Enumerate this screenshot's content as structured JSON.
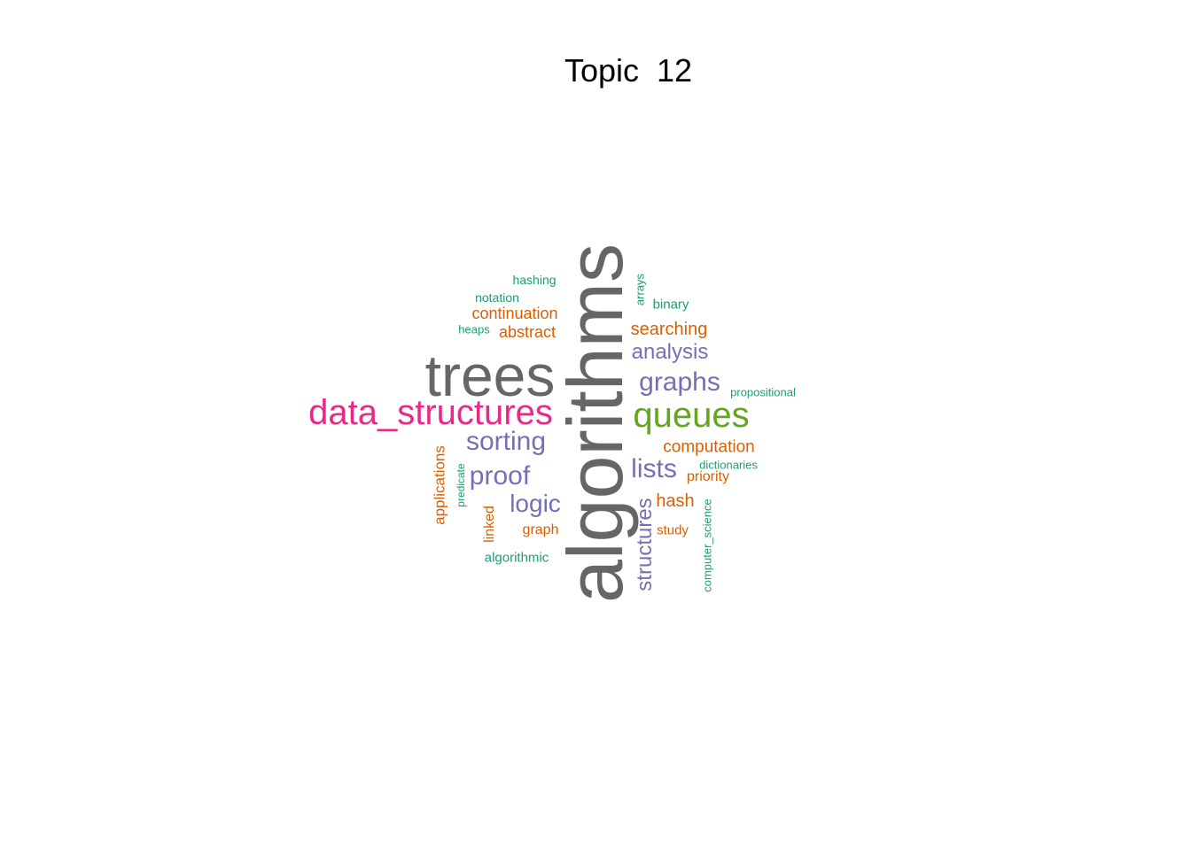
{
  "title": "Topic  12",
  "colors": {
    "gray": "#666666",
    "pink": "#e7298a",
    "green": "#66a61e",
    "purple": "#7570b3",
    "orange": "#d95f02",
    "teal": "#1b9e77"
  },
  "words": [
    {
      "text": "algorithms",
      "color": "#666666"
    },
    {
      "text": "trees",
      "color": "#666666"
    },
    {
      "text": "data_structures",
      "color": "#e7298a"
    },
    {
      "text": "queues",
      "color": "#66a61e"
    },
    {
      "text": "sorting",
      "color": "#7570b3"
    },
    {
      "text": "graphs",
      "color": "#7570b3"
    },
    {
      "text": "proof",
      "color": "#7570b3"
    },
    {
      "text": "lists",
      "color": "#7570b3"
    },
    {
      "text": "logic",
      "color": "#7570b3"
    },
    {
      "text": "structures",
      "color": "#7570b3"
    },
    {
      "text": "analysis",
      "color": "#7570b3"
    },
    {
      "text": "searching",
      "color": "#d95f02"
    },
    {
      "text": "computation",
      "color": "#d95f02"
    },
    {
      "text": "continuation",
      "color": "#d95f02"
    },
    {
      "text": "abstract",
      "color": "#d95f02"
    },
    {
      "text": "hash",
      "color": "#d95f02"
    },
    {
      "text": "applications",
      "color": "#d95f02"
    },
    {
      "text": "priority",
      "color": "#d95f02"
    },
    {
      "text": "linked",
      "color": "#d95f02"
    },
    {
      "text": "graph",
      "color": "#d95f02"
    },
    {
      "text": "study",
      "color": "#d95f02"
    },
    {
      "text": "hashing",
      "color": "#1b9e77"
    },
    {
      "text": "notation",
      "color": "#1b9e77"
    },
    {
      "text": "heaps",
      "color": "#1b9e77"
    },
    {
      "text": "binary",
      "color": "#1b9e77"
    },
    {
      "text": "arrays",
      "color": "#1b9e77"
    },
    {
      "text": "propositional",
      "color": "#1b9e77"
    },
    {
      "text": "dictionaries",
      "color": "#1b9e77"
    },
    {
      "text": "predicate",
      "color": "#1b9e77"
    },
    {
      "text": "algorithmic",
      "color": "#1b9e77"
    },
    {
      "text": "computer_science",
      "color": "#1b9e77"
    }
  ]
}
